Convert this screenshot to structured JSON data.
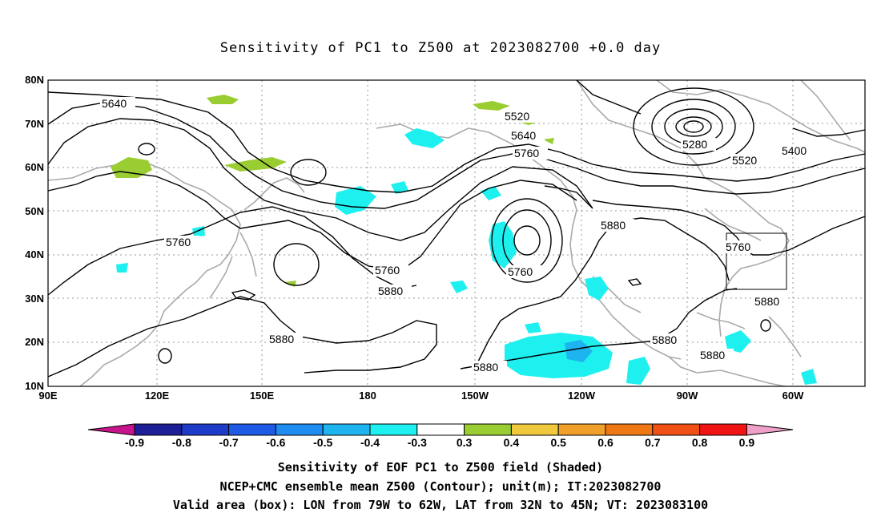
{
  "title": "Sensitivity of PC1 to Z500 at 2023082700 +0.0 day",
  "captions": [
    "Sensitivity of EOF PC1 to Z500 field (Shaded)",
    "NCEP+CMC ensemble mean Z500 (Contour); unit(m); IT:2023082700",
    "Valid area (box): LON from 79W to 62W, LAT from 32N to 45N; VT: 2023083100"
  ],
  "axes": {
    "lat_ticks": [
      "10N",
      "20N",
      "30N",
      "40N",
      "50N",
      "60N",
      "70N",
      "80N"
    ],
    "lon_ticks": [
      "90E",
      "120E",
      "150E",
      "180",
      "150W",
      "120W",
      "90W",
      "60W"
    ]
  },
  "contour_labels": [
    "5640",
    "5520",
    "5640",
    "5760",
    "5280",
    "5400",
    "5520",
    "5760",
    "5880",
    "5760",
    "5760",
    "5880",
    "5880",
    "5880",
    "5880",
    "5880"
  ],
  "colorbar": {
    "labels": [
      "-0.9",
      "-0.8",
      "-0.7",
      "-0.6",
      "-0.5",
      "-0.4",
      "-0.3",
      "0.3",
      "0.4",
      "0.5",
      "0.6",
      "0.7",
      "0.8",
      "0.9"
    ],
    "colors": [
      "#1e1e96",
      "#1e3cc8",
      "#1e5ae6",
      "#1e8cf0",
      "#1eb4f0",
      "#1ef0f0",
      "#ffffff",
      "#9acd32",
      "#f0c83c",
      "#f0a028",
      "#f07814",
      "#f05014",
      "#f01414"
    ],
    "low_arrow_color": "#c8148c",
    "high_arrow_color": "#f0a0c8"
  }
}
